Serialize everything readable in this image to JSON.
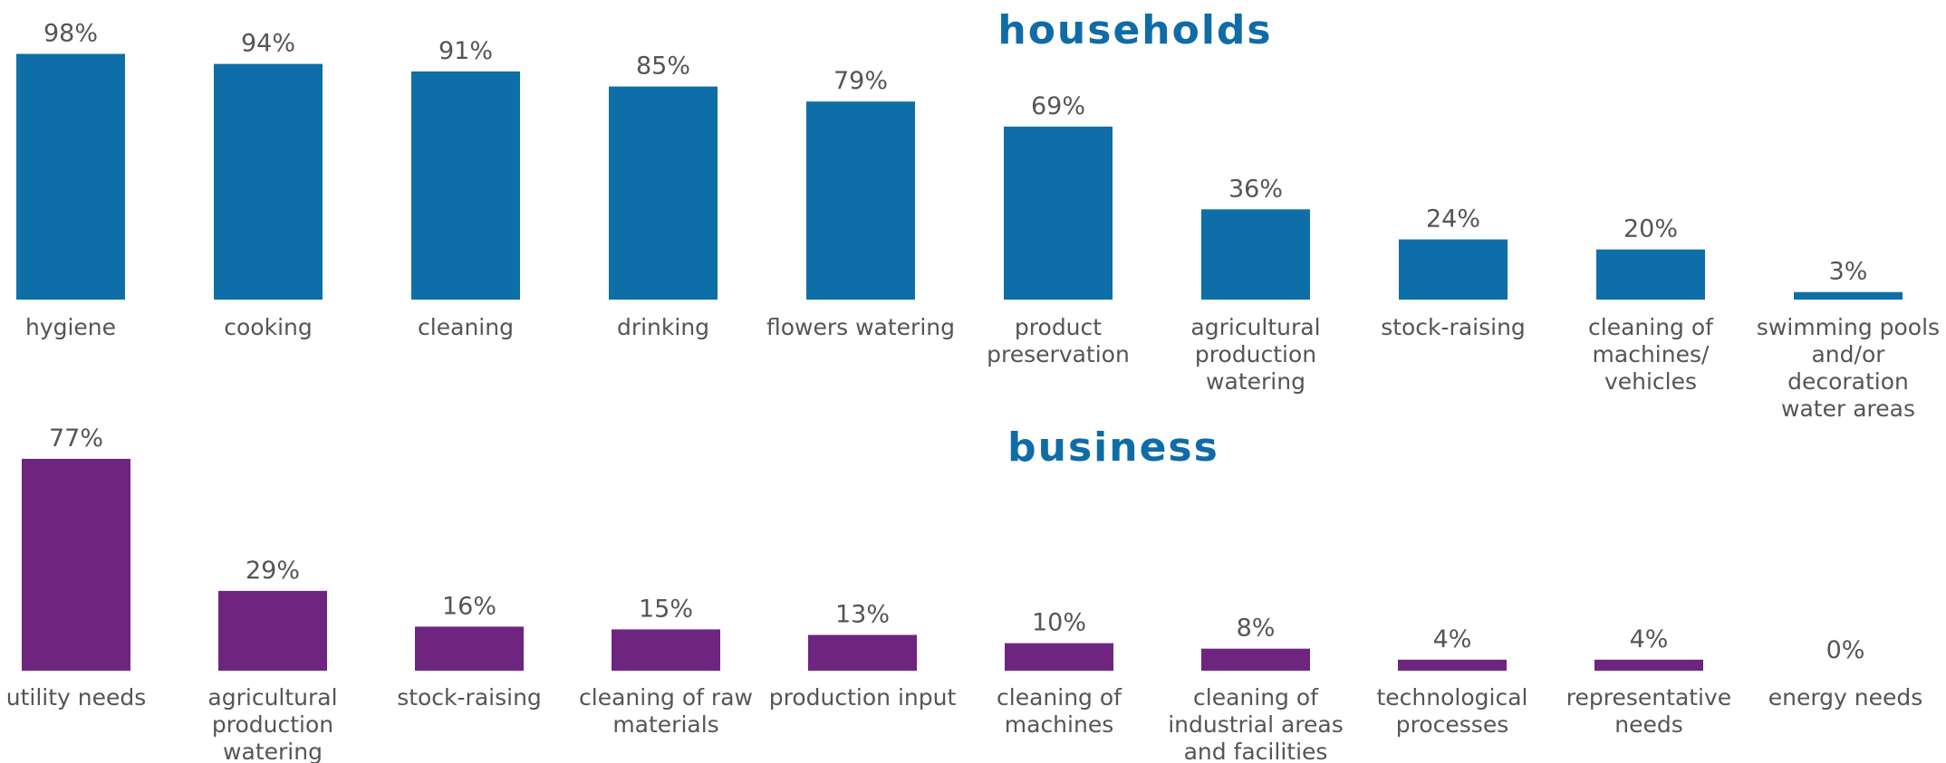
{
  "chart_data": [
    {
      "type": "bar",
      "title": "households",
      "categories": [
        "hygiene",
        "cooking",
        "cleaning",
        "drinking",
        "flowers watering",
        "product preservation",
        "agricultural production watering",
        "stock-raising",
        "cleaning of machines/ vehicles",
        "swimming pools and/or decoration water areas"
      ],
      "values": [
        98,
        94,
        91,
        85,
        79,
        69,
        36,
        24,
        20,
        3
      ],
      "value_labels": [
        "98%",
        "94%",
        "91%",
        "85%",
        "79%",
        "69%",
        "36%",
        "24%",
        "20%",
        "3%"
      ],
      "color": "#0e6fa8",
      "ylim": [
        0,
        100
      ]
    },
    {
      "type": "bar",
      "title": "business",
      "categories": [
        "utility needs",
        "agricultural production watering",
        "stock-raising",
        "cleaning of raw materials",
        "production input",
        "cleaning of machines",
        "cleaning of industrial areas and facilities",
        "technological processes",
        "representative needs",
        "energy needs"
      ],
      "values": [
        77,
        29,
        16,
        15,
        13,
        10,
        8,
        4,
        4,
        0
      ],
      "value_labels": [
        "77%",
        "29%",
        "16%",
        "15%",
        "13%",
        "10%",
        "8%",
        "4%",
        "4%",
        "0%"
      ],
      "color": "#6d2580",
      "ylim": [
        0,
        100
      ]
    }
  ]
}
